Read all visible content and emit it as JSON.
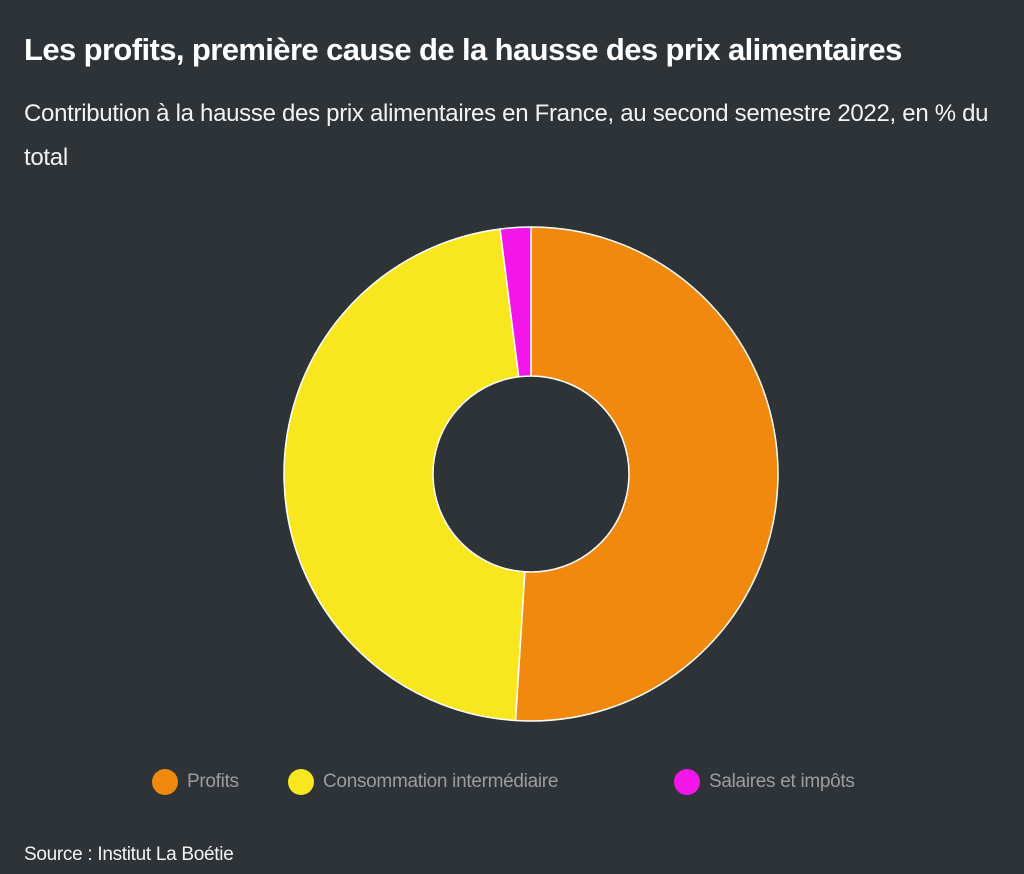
{
  "header": {
    "title": "Les profits, première cause de la hausse des prix alimentaires",
    "subtitle": "Contribution à la hausse des prix alimentaires en France, au second semestre 2022, en % du total"
  },
  "chart_data": {
    "type": "pie",
    "variant": "donut",
    "title": "Les profits, première cause de la hausse des prix alimentaires",
    "subtitle": "Contribution à la hausse des prix alimentaires en France, au second semestre 2022, en % du total",
    "categories": [
      "Profits",
      "Consommation intermédiaire",
      "Salaires et impôts"
    ],
    "values": [
      51,
      47,
      2
    ],
    "colors": [
      "#f0890d",
      "#f8e71e",
      "#f217e8"
    ],
    "legend_position": "bottom",
    "start_angle": "top, clockwise"
  },
  "legend": {
    "items": [
      {
        "label": "Profits",
        "color": "#f0890d"
      },
      {
        "label": "Consommation intermédiaire",
        "color": "#f8e71e"
      },
      {
        "label": "Salaires et impôts",
        "color": "#f217e8"
      }
    ]
  },
  "footer": {
    "source": "Source : Institut La Boétie"
  },
  "colors": {
    "background": "#2e3337",
    "slice_border": "#ffffff"
  }
}
